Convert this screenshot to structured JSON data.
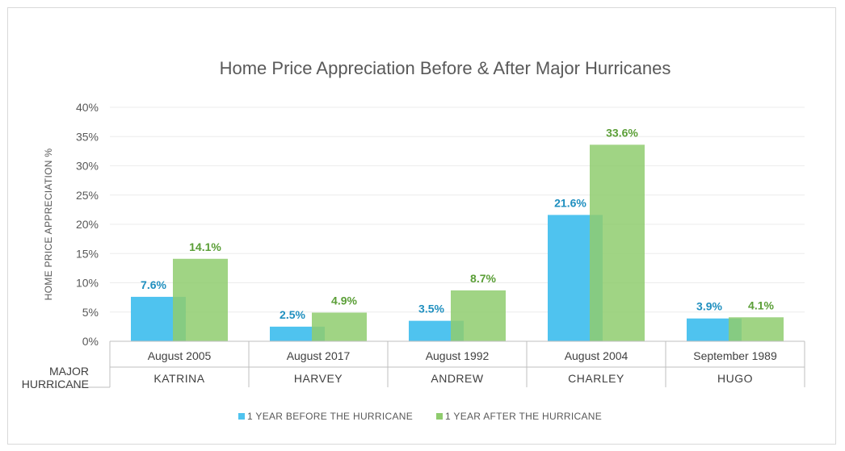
{
  "chart_data": {
    "type": "bar",
    "title": "Home Price Appreciation Before & After Major Hurricanes",
    "ylabel": "HOME PRICE APPRECIATION %",
    "xlabel_lines": [
      "MAJOR",
      "HURRICANE"
    ],
    "ylim": [
      0,
      40
    ],
    "yticks": [
      0,
      5,
      10,
      15,
      20,
      25,
      30,
      35,
      40
    ],
    "ytick_labels": [
      "0%",
      "5%",
      "10%",
      "15%",
      "20%",
      "25%",
      "30%",
      "35%",
      "40%"
    ],
    "categories": [
      {
        "date": "August 2005",
        "name": "KATRINA"
      },
      {
        "date": "August 2017",
        "name": "HARVEY"
      },
      {
        "date": "August 1992",
        "name": "ANDREW"
      },
      {
        "date": "August 2004",
        "name": "CHARLEY"
      },
      {
        "date": "September 1989",
        "name": "HUGO"
      }
    ],
    "series": [
      {
        "name": "1 YEAR BEFORE THE HURRICANE",
        "color": "#4fc3ef",
        "label_color": "#1f8fbf",
        "values": [
          7.6,
          2.5,
          3.5,
          21.6,
          3.9
        ],
        "labels": [
          "7.6%",
          "2.5%",
          "3.5%",
          "21.6%",
          "3.9%"
        ]
      },
      {
        "name": "1 YEAR AFTER THE HURRICANE",
        "color": "#8fcc6e",
        "label_color": "#5a9e36",
        "values": [
          14.1,
          4.9,
          8.7,
          33.6,
          4.1
        ],
        "labels": [
          "14.1%",
          "4.9%",
          "8.7%",
          "33.6%",
          "4.1%"
        ]
      }
    ],
    "legend_position": "bottom-center"
  }
}
